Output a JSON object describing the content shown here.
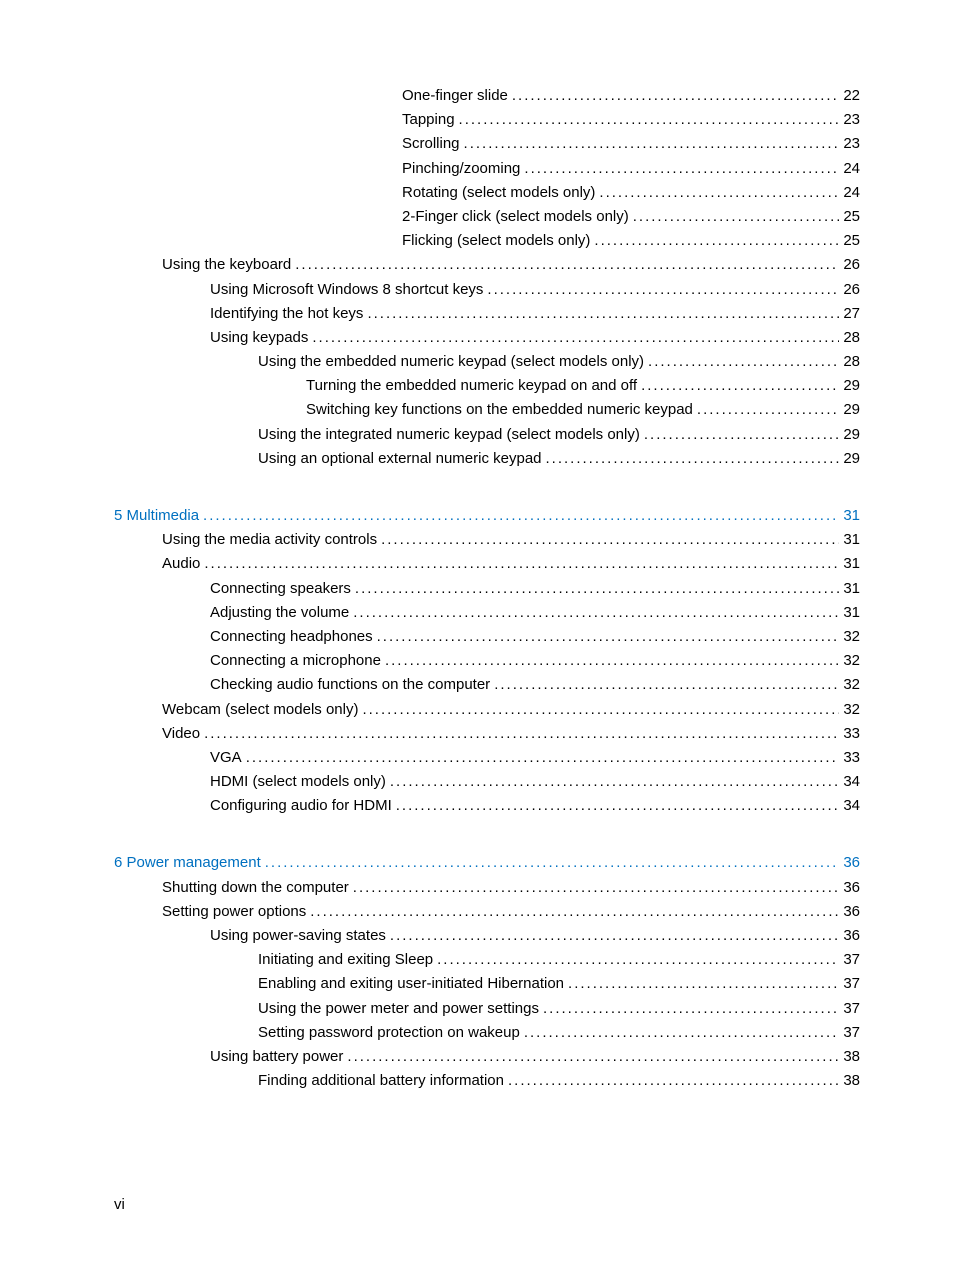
{
  "page_footer": "vi",
  "entries": [
    {
      "indent": 6,
      "label": "One-finger slide",
      "page": "22",
      "chapter": false
    },
    {
      "indent": 6,
      "label": "Tapping",
      "page": "23",
      "chapter": false
    },
    {
      "indent": 6,
      "label": "Scrolling",
      "page": "23",
      "chapter": false
    },
    {
      "indent": 6,
      "label": "Pinching/zooming",
      "page": "24",
      "chapter": false
    },
    {
      "indent": 6,
      "label": "Rotating (select models only)",
      "page": "24",
      "chapter": false
    },
    {
      "indent": 6,
      "label": "2-Finger click (select models only)",
      "page": "25",
      "chapter": false
    },
    {
      "indent": 6,
      "label": "Flicking (select models only)",
      "page": "25",
      "chapter": false
    },
    {
      "indent": 1,
      "label": "Using the keyboard",
      "page": "26",
      "chapter": false
    },
    {
      "indent": 2,
      "label": "Using Microsoft Windows 8 shortcut keys",
      "page": "26",
      "chapter": false
    },
    {
      "indent": 2,
      "label": "Identifying the hot keys",
      "page": "27",
      "chapter": false
    },
    {
      "indent": 2,
      "label": "Using keypads",
      "page": "28",
      "chapter": false
    },
    {
      "indent": 3,
      "label": "Using the embedded numeric keypad (select models only)",
      "page": "28",
      "chapter": false
    },
    {
      "indent": 4,
      "label": "Turning the embedded numeric keypad on and off",
      "page": "29",
      "chapter": false
    },
    {
      "indent": 4,
      "label": "Switching key functions on the embedded numeric keypad",
      "page": "29",
      "chapter": false
    },
    {
      "indent": 3,
      "label": "Using the integrated numeric keypad (select models only)",
      "page": "29",
      "chapter": false
    },
    {
      "indent": 3,
      "label": "Using an optional external numeric keypad",
      "page": "29",
      "chapter": false
    },
    {
      "gap": true
    },
    {
      "indent": 0,
      "label": "5  Multimedia",
      "page": "31",
      "chapter": true
    },
    {
      "indent": 1,
      "label": "Using the media activity controls",
      "page": "31",
      "chapter": false
    },
    {
      "indent": 1,
      "label": "Audio",
      "page": "31",
      "chapter": false
    },
    {
      "indent": 2,
      "label": "Connecting speakers",
      "page": "31",
      "chapter": false
    },
    {
      "indent": 2,
      "label": "Adjusting the volume",
      "page": "31",
      "chapter": false
    },
    {
      "indent": 2,
      "label": "Connecting headphones",
      "page": "32",
      "chapter": false
    },
    {
      "indent": 2,
      "label": "Connecting a microphone",
      "page": "32",
      "chapter": false
    },
    {
      "indent": 2,
      "label": "Checking audio functions on the computer",
      "page": "32",
      "chapter": false
    },
    {
      "indent": 1,
      "label": "Webcam (select models only)",
      "page": "32",
      "chapter": false
    },
    {
      "indent": 1,
      "label": "Video",
      "page": "33",
      "chapter": false
    },
    {
      "indent": 2,
      "label": "VGA",
      "page": "33",
      "chapter": false
    },
    {
      "indent": 2,
      "label": "HDMI (select models only)",
      "page": "34",
      "chapter": false
    },
    {
      "indent": 2,
      "label": "Configuring audio for HDMI",
      "page": "34",
      "chapter": false
    },
    {
      "gap": true
    },
    {
      "indent": 0,
      "label": "6  Power management",
      "page": "36",
      "chapter": true
    },
    {
      "indent": 1,
      "label": "Shutting down the computer",
      "page": "36",
      "chapter": false
    },
    {
      "indent": 1,
      "label": "Setting power options",
      "page": "36",
      "chapter": false
    },
    {
      "indent": 2,
      "label": "Using power-saving states",
      "page": "36",
      "chapter": false
    },
    {
      "indent": 3,
      "label": "Initiating and exiting Sleep",
      "page": "37",
      "chapter": false
    },
    {
      "indent": 3,
      "label": "Enabling and exiting user-initiated Hibernation",
      "page": "37",
      "chapter": false
    },
    {
      "indent": 3,
      "label": "Using the power meter and power settings",
      "page": "37",
      "chapter": false
    },
    {
      "indent": 3,
      "label": "Setting password protection on wakeup",
      "page": "37",
      "chapter": false
    },
    {
      "indent": 2,
      "label": "Using battery power",
      "page": "38",
      "chapter": false
    },
    {
      "indent": 3,
      "label": "Finding additional battery information",
      "page": "38",
      "chapter": false
    }
  ]
}
